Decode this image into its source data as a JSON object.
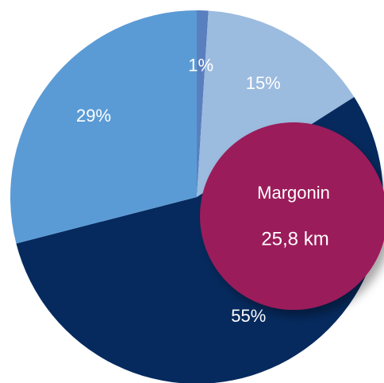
{
  "chart_data": {
    "type": "pie",
    "values": [
      1,
      15,
      55,
      29
    ],
    "value_labels": [
      "1%",
      "15%",
      "55%",
      "29%"
    ],
    "colors": [
      "#5a7fbf",
      "#9bbbdf",
      "#062a5e",
      "#5b9bd5"
    ],
    "annotation": {
      "title": "Margonin",
      "text": "25,8 km",
      "color": "#9b1a5a"
    }
  }
}
